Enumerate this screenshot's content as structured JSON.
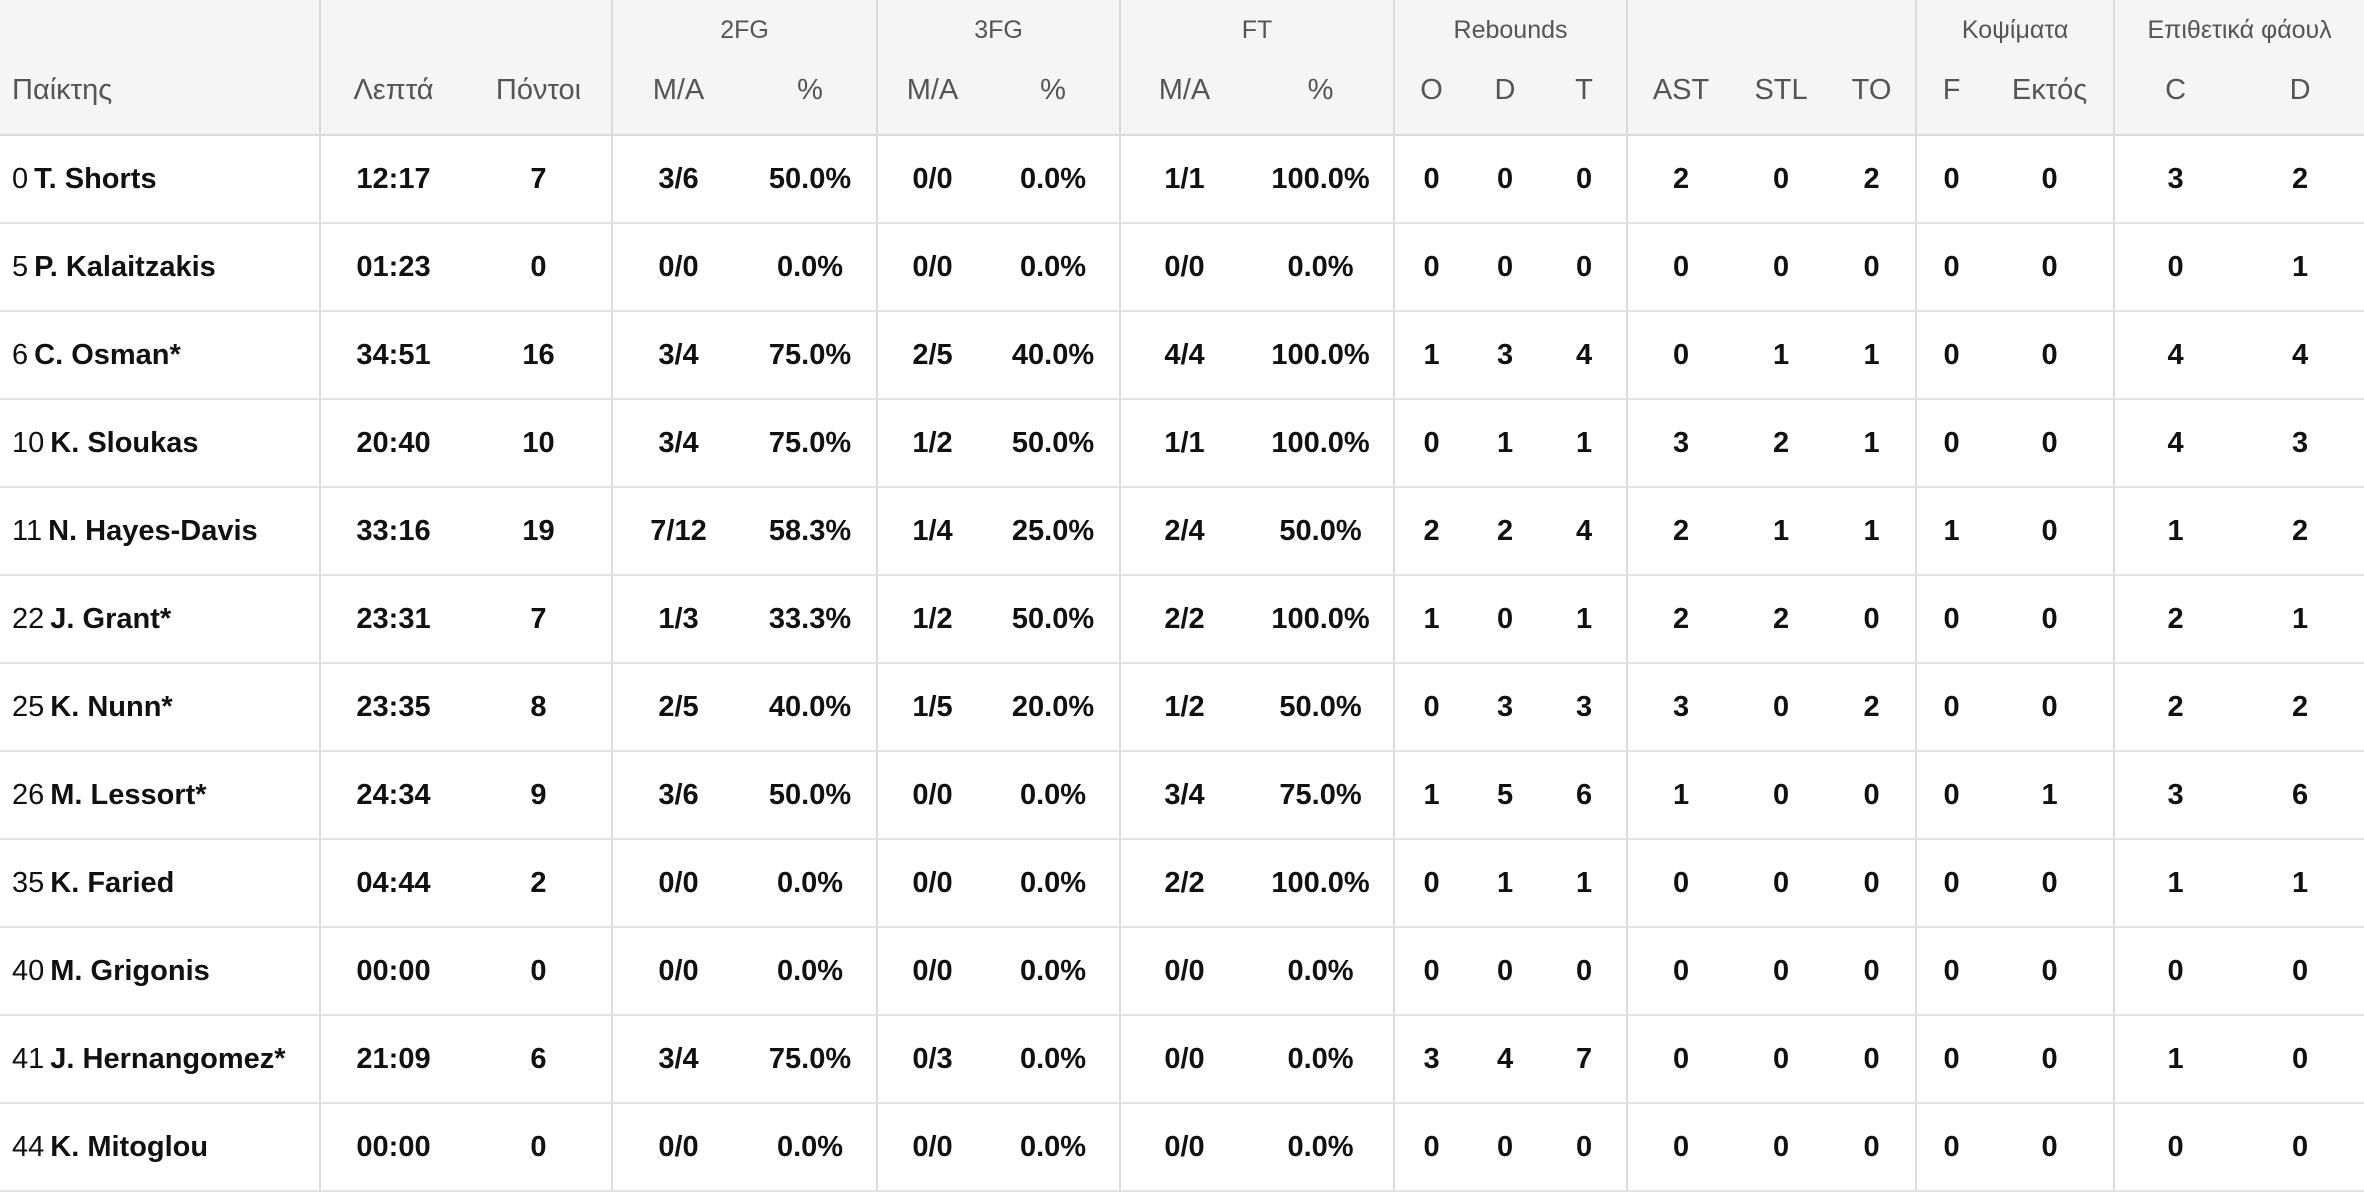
{
  "header": {
    "groups": {
      "fg2": "2FG",
      "fg3": "3FG",
      "ft": "FT",
      "rebounds": "Rebounds",
      "blocks": "Κοψίματα",
      "fouls": "Επιθετικά φάουλ"
    },
    "columns": {
      "player": "Παίκτης",
      "minutes": "Λεπτά",
      "points": "Πόντοι",
      "fg2_ma": "M/A",
      "fg2_pct": "%",
      "fg3_ma": "M/A",
      "fg3_pct": "%",
      "ft_ma": "M/A",
      "ft_pct": "%",
      "reb_o": "O",
      "reb_d": "D",
      "reb_t": "T",
      "ast": "AST",
      "stl": "STL",
      "to": "TO",
      "blk_f": "F",
      "blk_against": "Εκτός",
      "foul_c": "C",
      "foul_d": "D"
    }
  },
  "rows": [
    {
      "num": "0",
      "name": "T. Shorts",
      "min": "12:17",
      "pts": "7",
      "fg2": "3/6",
      "fg2p": "50.0%",
      "fg3": "0/0",
      "fg3p": "0.0%",
      "ft": "1/1",
      "ftp": "100.0%",
      "ro": "0",
      "rd": "0",
      "rt": "0",
      "ast": "2",
      "stl": "0",
      "to": "2",
      "bf": "0",
      "bx": "0",
      "fc": "3",
      "fd": "2"
    },
    {
      "num": "5",
      "name": "P. Kalaitzakis",
      "min": "01:23",
      "pts": "0",
      "fg2": "0/0",
      "fg2p": "0.0%",
      "fg3": "0/0",
      "fg3p": "0.0%",
      "ft": "0/0",
      "ftp": "0.0%",
      "ro": "0",
      "rd": "0",
      "rt": "0",
      "ast": "0",
      "stl": "0",
      "to": "0",
      "bf": "0",
      "bx": "0",
      "fc": "0",
      "fd": "1"
    },
    {
      "num": "6",
      "name": "C. Osman*",
      "min": "34:51",
      "pts": "16",
      "fg2": "3/4",
      "fg2p": "75.0%",
      "fg3": "2/5",
      "fg3p": "40.0%",
      "ft": "4/4",
      "ftp": "100.0%",
      "ro": "1",
      "rd": "3",
      "rt": "4",
      "ast": "0",
      "stl": "1",
      "to": "1",
      "bf": "0",
      "bx": "0",
      "fc": "4",
      "fd": "4"
    },
    {
      "num": "10",
      "name": "K. Sloukas",
      "min": "20:40",
      "pts": "10",
      "fg2": "3/4",
      "fg2p": "75.0%",
      "fg3": "1/2",
      "fg3p": "50.0%",
      "ft": "1/1",
      "ftp": "100.0%",
      "ro": "0",
      "rd": "1",
      "rt": "1",
      "ast": "3",
      "stl": "2",
      "to": "1",
      "bf": "0",
      "bx": "0",
      "fc": "4",
      "fd": "3"
    },
    {
      "num": "11",
      "name": "N. Hayes-Davis",
      "min": "33:16",
      "pts": "19",
      "fg2": "7/12",
      "fg2p": "58.3%",
      "fg3": "1/4",
      "fg3p": "25.0%",
      "ft": "2/4",
      "ftp": "50.0%",
      "ro": "2",
      "rd": "2",
      "rt": "4",
      "ast": "2",
      "stl": "1",
      "to": "1",
      "bf": "1",
      "bx": "0",
      "fc": "1",
      "fd": "2"
    },
    {
      "num": "22",
      "name": "J. Grant*",
      "min": "23:31",
      "pts": "7",
      "fg2": "1/3",
      "fg2p": "33.3%",
      "fg3": "1/2",
      "fg3p": "50.0%",
      "ft": "2/2",
      "ftp": "100.0%",
      "ro": "1",
      "rd": "0",
      "rt": "1",
      "ast": "2",
      "stl": "2",
      "to": "0",
      "bf": "0",
      "bx": "0",
      "fc": "2",
      "fd": "1"
    },
    {
      "num": "25",
      "name": "K. Nunn*",
      "min": "23:35",
      "pts": "8",
      "fg2": "2/5",
      "fg2p": "40.0%",
      "fg3": "1/5",
      "fg3p": "20.0%",
      "ft": "1/2",
      "ftp": "50.0%",
      "ro": "0",
      "rd": "3",
      "rt": "3",
      "ast": "3",
      "stl": "0",
      "to": "2",
      "bf": "0",
      "bx": "0",
      "fc": "2",
      "fd": "2"
    },
    {
      "num": "26",
      "name": "M. Lessort*",
      "min": "24:34",
      "pts": "9",
      "fg2": "3/6",
      "fg2p": "50.0%",
      "fg3": "0/0",
      "fg3p": "0.0%",
      "ft": "3/4",
      "ftp": "75.0%",
      "ro": "1",
      "rd": "5",
      "rt": "6",
      "ast": "1",
      "stl": "0",
      "to": "0",
      "bf": "0",
      "bx": "1",
      "fc": "3",
      "fd": "6"
    },
    {
      "num": "35",
      "name": "K. Faried",
      "min": "04:44",
      "pts": "2",
      "fg2": "0/0",
      "fg2p": "0.0%",
      "fg3": "0/0",
      "fg3p": "0.0%",
      "ft": "2/2",
      "ftp": "100.0%",
      "ro": "0",
      "rd": "1",
      "rt": "1",
      "ast": "0",
      "stl": "0",
      "to": "0",
      "bf": "0",
      "bx": "0",
      "fc": "1",
      "fd": "1"
    },
    {
      "num": "40",
      "name": "M. Grigonis",
      "min": "00:00",
      "pts": "0",
      "fg2": "0/0",
      "fg2p": "0.0%",
      "fg3": "0/0",
      "fg3p": "0.0%",
      "ft": "0/0",
      "ftp": "0.0%",
      "ro": "0",
      "rd": "0",
      "rt": "0",
      "ast": "0",
      "stl": "0",
      "to": "0",
      "bf": "0",
      "bx": "0",
      "fc": "0",
      "fd": "0"
    },
    {
      "num": "41",
      "name": "J. Hernangomez*",
      "min": "21:09",
      "pts": "6",
      "fg2": "3/4",
      "fg2p": "75.0%",
      "fg3": "0/3",
      "fg3p": "0.0%",
      "ft": "0/0",
      "ftp": "0.0%",
      "ro": "3",
      "rd": "4",
      "rt": "7",
      "ast": "0",
      "stl": "0",
      "to": "0",
      "bf": "0",
      "bx": "0",
      "fc": "1",
      "fd": "0"
    },
    {
      "num": "44",
      "name": "K. Mitoglou",
      "min": "00:00",
      "pts": "0",
      "fg2": "0/0",
      "fg2p": "0.0%",
      "fg3": "0/0",
      "fg3p": "0.0%",
      "ft": "0/0",
      "ftp": "0.0%",
      "ro": "0",
      "rd": "0",
      "rt": "0",
      "ast": "0",
      "stl": "0",
      "to": "0",
      "bf": "0",
      "bx": "0",
      "fc": "0",
      "fd": "0"
    }
  ]
}
